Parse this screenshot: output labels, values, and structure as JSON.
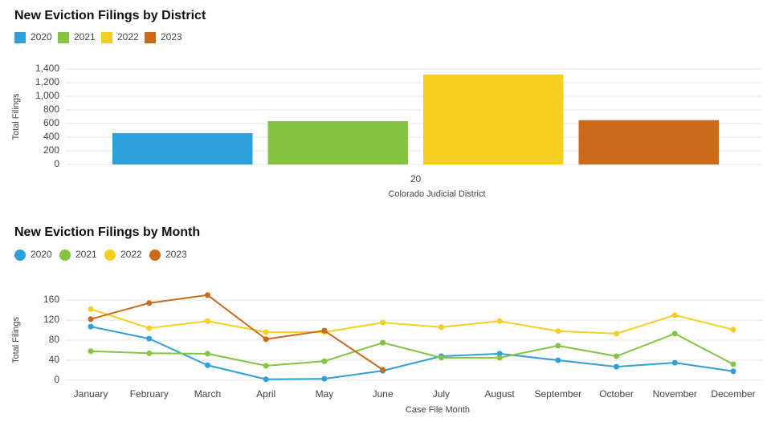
{
  "chart_data": [
    {
      "type": "bar",
      "title": "New Eviction Filings by District",
      "categories": [
        "20"
      ],
      "x_label": "Colorado Judicial District",
      "y_label": "Total Filings",
      "series": [
        {
          "name": "2020",
          "color": "#2e9fd8",
          "values": [
            460
          ]
        },
        {
          "name": "2021",
          "color": "#84c440",
          "values": [
            635
          ]
        },
        {
          "name": "2022",
          "color": "#f4cf22",
          "values": [
            1320
          ]
        },
        {
          "name": "2023",
          "color": "#cc6a1c",
          "values": [
            650
          ]
        }
      ],
      "ylim": [
        0,
        1400
      ],
      "yticks": [
        0,
        200,
        400,
        600,
        800,
        {
          "value": 1000,
          "label": "1,000"
        },
        {
          "value": 1200,
          "label": "1,200"
        },
        {
          "value": 1400,
          "label": "1,400"
        }
      ],
      "grid": true
    },
    {
      "type": "line",
      "title": "New Eviction Filings by Month",
      "categories": [
        "January",
        "February",
        "March",
        "April",
        "May",
        "June",
        "July",
        "August",
        "September",
        "October",
        "November",
        "December"
      ],
      "x_label": "Case File Month",
      "y_label": "Total Filings",
      "series": [
        {
          "name": "2020",
          "color": "#2e9fd8",
          "values": [
            107,
            83,
            30,
            2,
            3,
            19,
            48,
            53,
            40,
            27,
            35,
            18
          ]
        },
        {
          "name": "2021",
          "color": "#84c440",
          "values": [
            58,
            54,
            53,
            29,
            38,
            75,
            45,
            45,
            69,
            48,
            93,
            32
          ]
        },
        {
          "name": "2022",
          "color": "#f4cf22",
          "values": [
            142,
            104,
            118,
            96,
            96,
            115,
            106,
            118,
            98,
            93,
            130,
            101
          ]
        },
        {
          "name": "2023",
          "color": "#cc6a1c",
          "values": [
            122,
            154,
            170,
            82,
            99,
            21,
            null,
            null,
            null,
            null,
            null,
            null
          ]
        }
      ],
      "ylim": [
        0,
        160
      ],
      "yticks": [
        0,
        40,
        80,
        120,
        160
      ],
      "grid": true
    }
  ]
}
